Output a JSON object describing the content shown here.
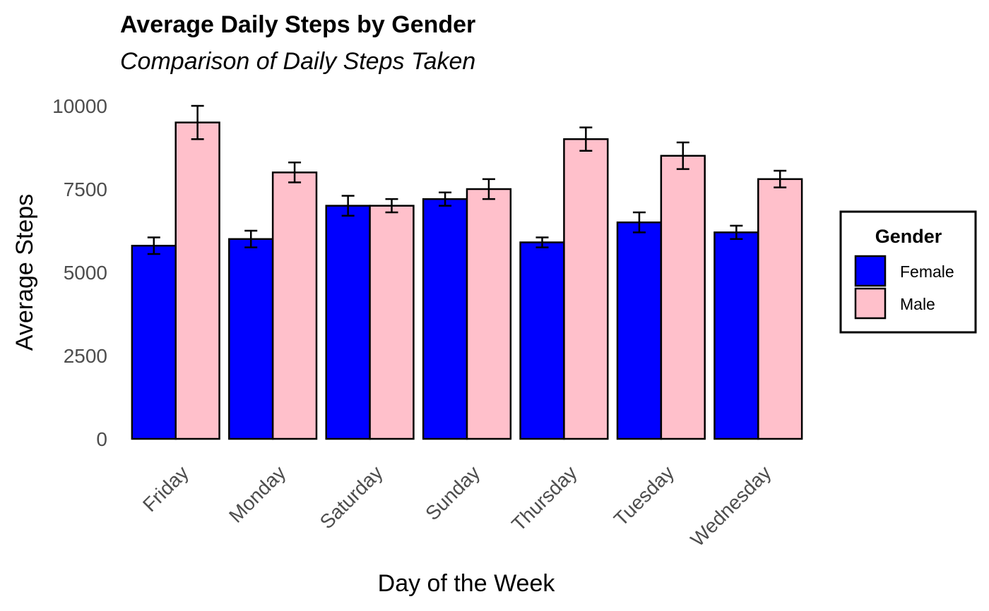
{
  "chart_data": {
    "type": "bar",
    "title": "Average Daily Steps by Gender",
    "subtitle": "Comparison of Daily Steps Taken",
    "xlabel": "Day of the Week",
    "ylabel": "Average Steps",
    "categories": [
      "Friday",
      "Monday",
      "Saturday",
      "Sunday",
      "Thursday",
      "Tuesday",
      "Wednesday"
    ],
    "series": [
      {
        "name": "Female",
        "color": "#0000ff",
        "values": [
          5800,
          6000,
          7000,
          7200,
          5900,
          6500,
          6200
        ],
        "error_low": [
          5550,
          5750,
          6700,
          7000,
          5750,
          6200,
          6000
        ],
        "error_high": [
          6050,
          6250,
          7300,
          7400,
          6050,
          6800,
          6400
        ]
      },
      {
        "name": "Male",
        "color": "#ffc0cb",
        "values": [
          9500,
          8000,
          7000,
          7500,
          9000,
          8500,
          7800
        ],
        "error_low": [
          9000,
          7700,
          6800,
          7200,
          8650,
          8100,
          7550
        ],
        "error_high": [
          10000,
          8300,
          7200,
          7800,
          9350,
          8900,
          8050
        ]
      }
    ],
    "yticks": [
      0,
      2500,
      5000,
      7500,
      10000
    ],
    "ylim": [
      0,
      10400
    ],
    "grid": false,
    "legend": {
      "title": "Gender",
      "placement": "right"
    }
  }
}
